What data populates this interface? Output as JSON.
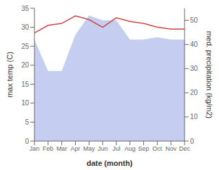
{
  "chart_data": {
    "type": "line",
    "xlabel": "date (month)",
    "ylabel": "max temp (C)",
    "y2label": "med. precipitation (kg/m2)",
    "categories": [
      "Jan",
      "Feb",
      "Mar",
      "Apr",
      "May",
      "Jun",
      "Jul",
      "Aug",
      "Sep",
      "Oct",
      "Nov",
      "Dec"
    ],
    "series": [
      {
        "name": "precip",
        "type": "area",
        "axis": "y2",
        "color": "#c5cef0",
        "values": [
          42,
          29,
          29,
          44,
          52,
          50,
          50,
          42,
          42,
          43,
          42,
          42
        ]
      },
      {
        "name": "temp",
        "type": "line",
        "color": "#cc4444",
        "values": [
          28.5,
          30.5,
          31.0,
          33.0,
          32.0,
          30.0,
          32.5,
          31.5,
          31.0,
          30.0,
          29.5,
          29.5
        ]
      }
    ],
    "ylim": [
      0,
      35
    ],
    "yticks": [
      0,
      5,
      10,
      15,
      20,
      25,
      30,
      35
    ],
    "y2lim": [
      0,
      55
    ],
    "y2ticks": [
      0,
      10,
      20,
      30,
      40,
      50
    ],
    "grid": false
  }
}
